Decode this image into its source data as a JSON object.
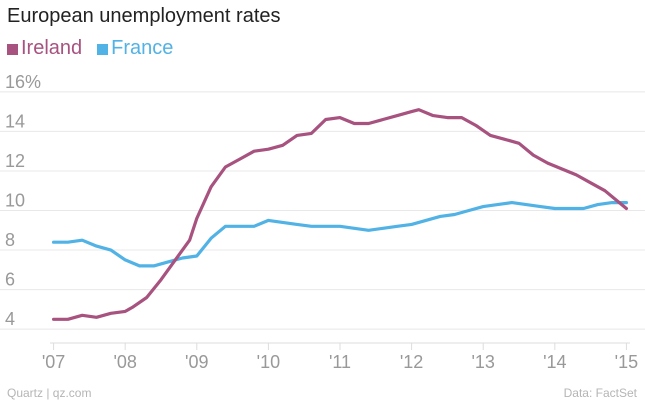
{
  "chart_data": {
    "type": "line",
    "title": "European unemployment rates",
    "xlabel": "",
    "ylabel": "",
    "x_ticks": [
      "'07",
      "'08",
      "'09",
      "'10",
      "'11",
      "'12",
      "'13",
      "'14",
      "'15"
    ],
    "x_tick_positions": [
      2007,
      2008,
      2009,
      2010,
      2011,
      2012,
      2013,
      2014,
      2015
    ],
    "xlim": [
      2006.95,
      2015.05
    ],
    "y_ticks": [
      "4",
      "6",
      "8",
      "10",
      "12",
      "14",
      "16%"
    ],
    "y_tick_values": [
      4,
      6,
      8,
      10,
      12,
      14,
      16
    ],
    "ylim": [
      3.3,
      16.6
    ],
    "grid": true,
    "legend_position": "top-left",
    "series": [
      {
        "name": "Ireland",
        "color": "#a7527f",
        "x": [
          2007.0,
          2007.2,
          2007.4,
          2007.6,
          2007.8,
          2008.0,
          2008.1,
          2008.3,
          2008.5,
          2008.7,
          2008.9,
          2009.0,
          2009.2,
          2009.4,
          2009.6,
          2009.8,
          2010.0,
          2010.2,
          2010.4,
          2010.6,
          2010.8,
          2011.0,
          2011.2,
          2011.4,
          2011.6,
          2011.8,
          2012.0,
          2012.1,
          2012.3,
          2012.5,
          2012.7,
          2012.9,
          2013.1,
          2013.3,
          2013.5,
          2013.7,
          2013.9,
          2014.1,
          2014.3,
          2014.5,
          2014.7,
          2014.9,
          2015.0
        ],
        "values": [
          4.5,
          4.5,
          4.7,
          4.6,
          4.8,
          4.9,
          5.1,
          5.6,
          6.5,
          7.5,
          8.5,
          9.6,
          11.2,
          12.2,
          12.6,
          13.0,
          13.1,
          13.3,
          13.8,
          13.9,
          14.6,
          14.7,
          14.4,
          14.4,
          14.6,
          14.8,
          15.0,
          15.1,
          14.8,
          14.7,
          14.7,
          14.3,
          13.8,
          13.6,
          13.4,
          12.8,
          12.4,
          12.1,
          11.8,
          11.4,
          11.0,
          10.4,
          10.1
        ]
      },
      {
        "name": "France",
        "color": "#51b2e5",
        "x": [
          2007.0,
          2007.2,
          2007.4,
          2007.6,
          2007.8,
          2008.0,
          2008.2,
          2008.4,
          2008.6,
          2008.8,
          2009.0,
          2009.2,
          2009.4,
          2009.6,
          2009.8,
          2010.0,
          2010.2,
          2010.4,
          2010.6,
          2010.8,
          2011.0,
          2011.2,
          2011.4,
          2011.6,
          2011.8,
          2012.0,
          2012.2,
          2012.4,
          2012.6,
          2012.8,
          2013.0,
          2013.2,
          2013.4,
          2013.6,
          2013.8,
          2014.0,
          2014.2,
          2014.4,
          2014.6,
          2014.8,
          2015.0
        ],
        "values": [
          8.4,
          8.4,
          8.5,
          8.2,
          8.0,
          7.5,
          7.2,
          7.2,
          7.4,
          7.6,
          7.7,
          8.6,
          9.2,
          9.2,
          9.2,
          9.5,
          9.4,
          9.3,
          9.2,
          9.2,
          9.2,
          9.1,
          9.0,
          9.1,
          9.2,
          9.3,
          9.5,
          9.7,
          9.8,
          10.0,
          10.2,
          10.3,
          10.4,
          10.3,
          10.2,
          10.1,
          10.1,
          10.1,
          10.3,
          10.4,
          10.4
        ]
      }
    ]
  },
  "footer": {
    "source_left": "Quartz | qz.com",
    "source_right": "Data: FactSet"
  }
}
